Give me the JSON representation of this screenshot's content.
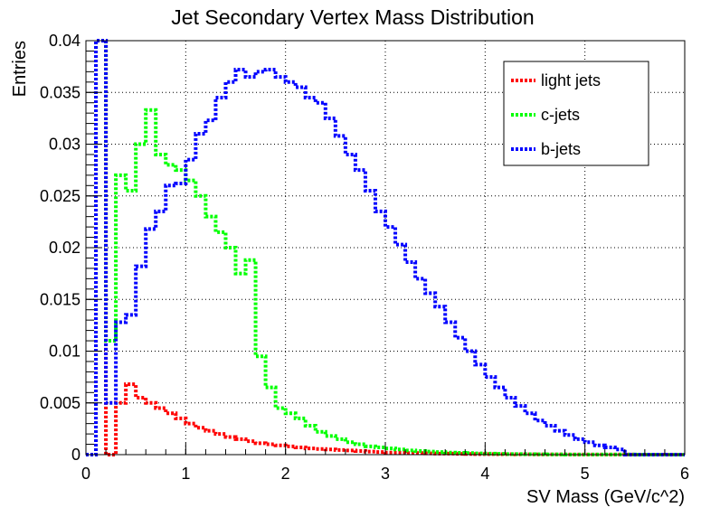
{
  "chart_data": {
    "type": "line",
    "title": "Jet Secondary Vertex Mass Distribution",
    "xlabel": "SV Mass (GeV/c^2)",
    "ylabel": "Entries",
    "xlim": [
      0,
      6
    ],
    "ylim": [
      0,
      0.04
    ],
    "x_ticks": [
      "0",
      "1",
      "2",
      "3",
      "4",
      "5",
      "6"
    ],
    "y_ticks": [
      "0",
      "0.005",
      "0.01",
      "0.015",
      "0.02",
      "0.025",
      "0.03",
      "0.035",
      "0.04"
    ],
    "grid": true,
    "legend_position": "top-right",
    "bin_width": 0.1,
    "bin_edges_start": 0,
    "series": [
      {
        "name": "light jets",
        "color": "#ff0000",
        "values": [
          0,
          0.04,
          0,
          0.005,
          0.0068,
          0.0055,
          0.005,
          0.0045,
          0.004,
          0.0035,
          0.003,
          0.0026,
          0.0023,
          0.002,
          0.0017,
          0.0015,
          0.0013,
          0.0011,
          0.001,
          0.0009,
          0.0008,
          0.0007,
          0.0006,
          0.00055,
          0.0005,
          0.00045,
          0.0004,
          0.00035,
          0.0003,
          0.00025,
          0.0002,
          0.0002,
          0.00015,
          0.00015,
          0.00012,
          0.0001,
          0.0001,
          8e-05,
          7e-05,
          6e-05,
          5e-05,
          4e-05,
          4e-05,
          3e-05,
          3e-05,
          2e-05,
          2e-05,
          2e-05,
          1e-05,
          1e-05,
          1e-05,
          1e-05,
          1e-05,
          1e-05,
          1e-05,
          0,
          0,
          0,
          0,
          0
        ]
      },
      {
        "name": "c-jets",
        "color": "#00ff00",
        "values": [
          0,
          0.04,
          0.011,
          0.027,
          0.0255,
          0.03,
          0.0333,
          0.029,
          0.028,
          0.0275,
          0.0265,
          0.025,
          0.023,
          0.0215,
          0.02,
          0.0175,
          0.0188,
          0.0095,
          0.0065,
          0.0045,
          0.004,
          0.0035,
          0.0028,
          0.0022,
          0.0018,
          0.0015,
          0.0012,
          0.001,
          0.0008,
          0.0007,
          0.0006,
          0.0005,
          0.0004,
          0.00035,
          0.0003,
          0.00025,
          0.0002,
          0.00018,
          0.00015,
          0.00012,
          0.0001,
          8e-05,
          6e-05,
          5e-05,
          4e-05,
          3e-05,
          2e-05,
          2e-05,
          1e-05,
          1e-05,
          1e-05,
          1e-05,
          1e-05,
          1e-05,
          1e-05,
          0,
          0,
          0,
          0,
          0
        ]
      },
      {
        "name": "b-jets",
        "color": "#0000ff",
        "values": [
          0,
          0.04,
          0.005,
          0.0128,
          0.0135,
          0.0182,
          0.0218,
          0.0235,
          0.026,
          0.0262,
          0.0285,
          0.031,
          0.0323,
          0.0345,
          0.036,
          0.0372,
          0.0365,
          0.037,
          0.0372,
          0.0365,
          0.036,
          0.0355,
          0.0345,
          0.034,
          0.0325,
          0.0308,
          0.029,
          0.0275,
          0.0255,
          0.0235,
          0.022,
          0.0203,
          0.0186,
          0.017,
          0.0156,
          0.0143,
          0.0128,
          0.0113,
          0.01,
          0.0087,
          0.0075,
          0.0065,
          0.0055,
          0.0047,
          0.004,
          0.0033,
          0.0028,
          0.0023,
          0.0019,
          0.0015,
          0.0012,
          0.0009,
          0.0007,
          0.0005,
          0,
          0,
          0,
          0,
          0,
          0
        ]
      }
    ]
  }
}
